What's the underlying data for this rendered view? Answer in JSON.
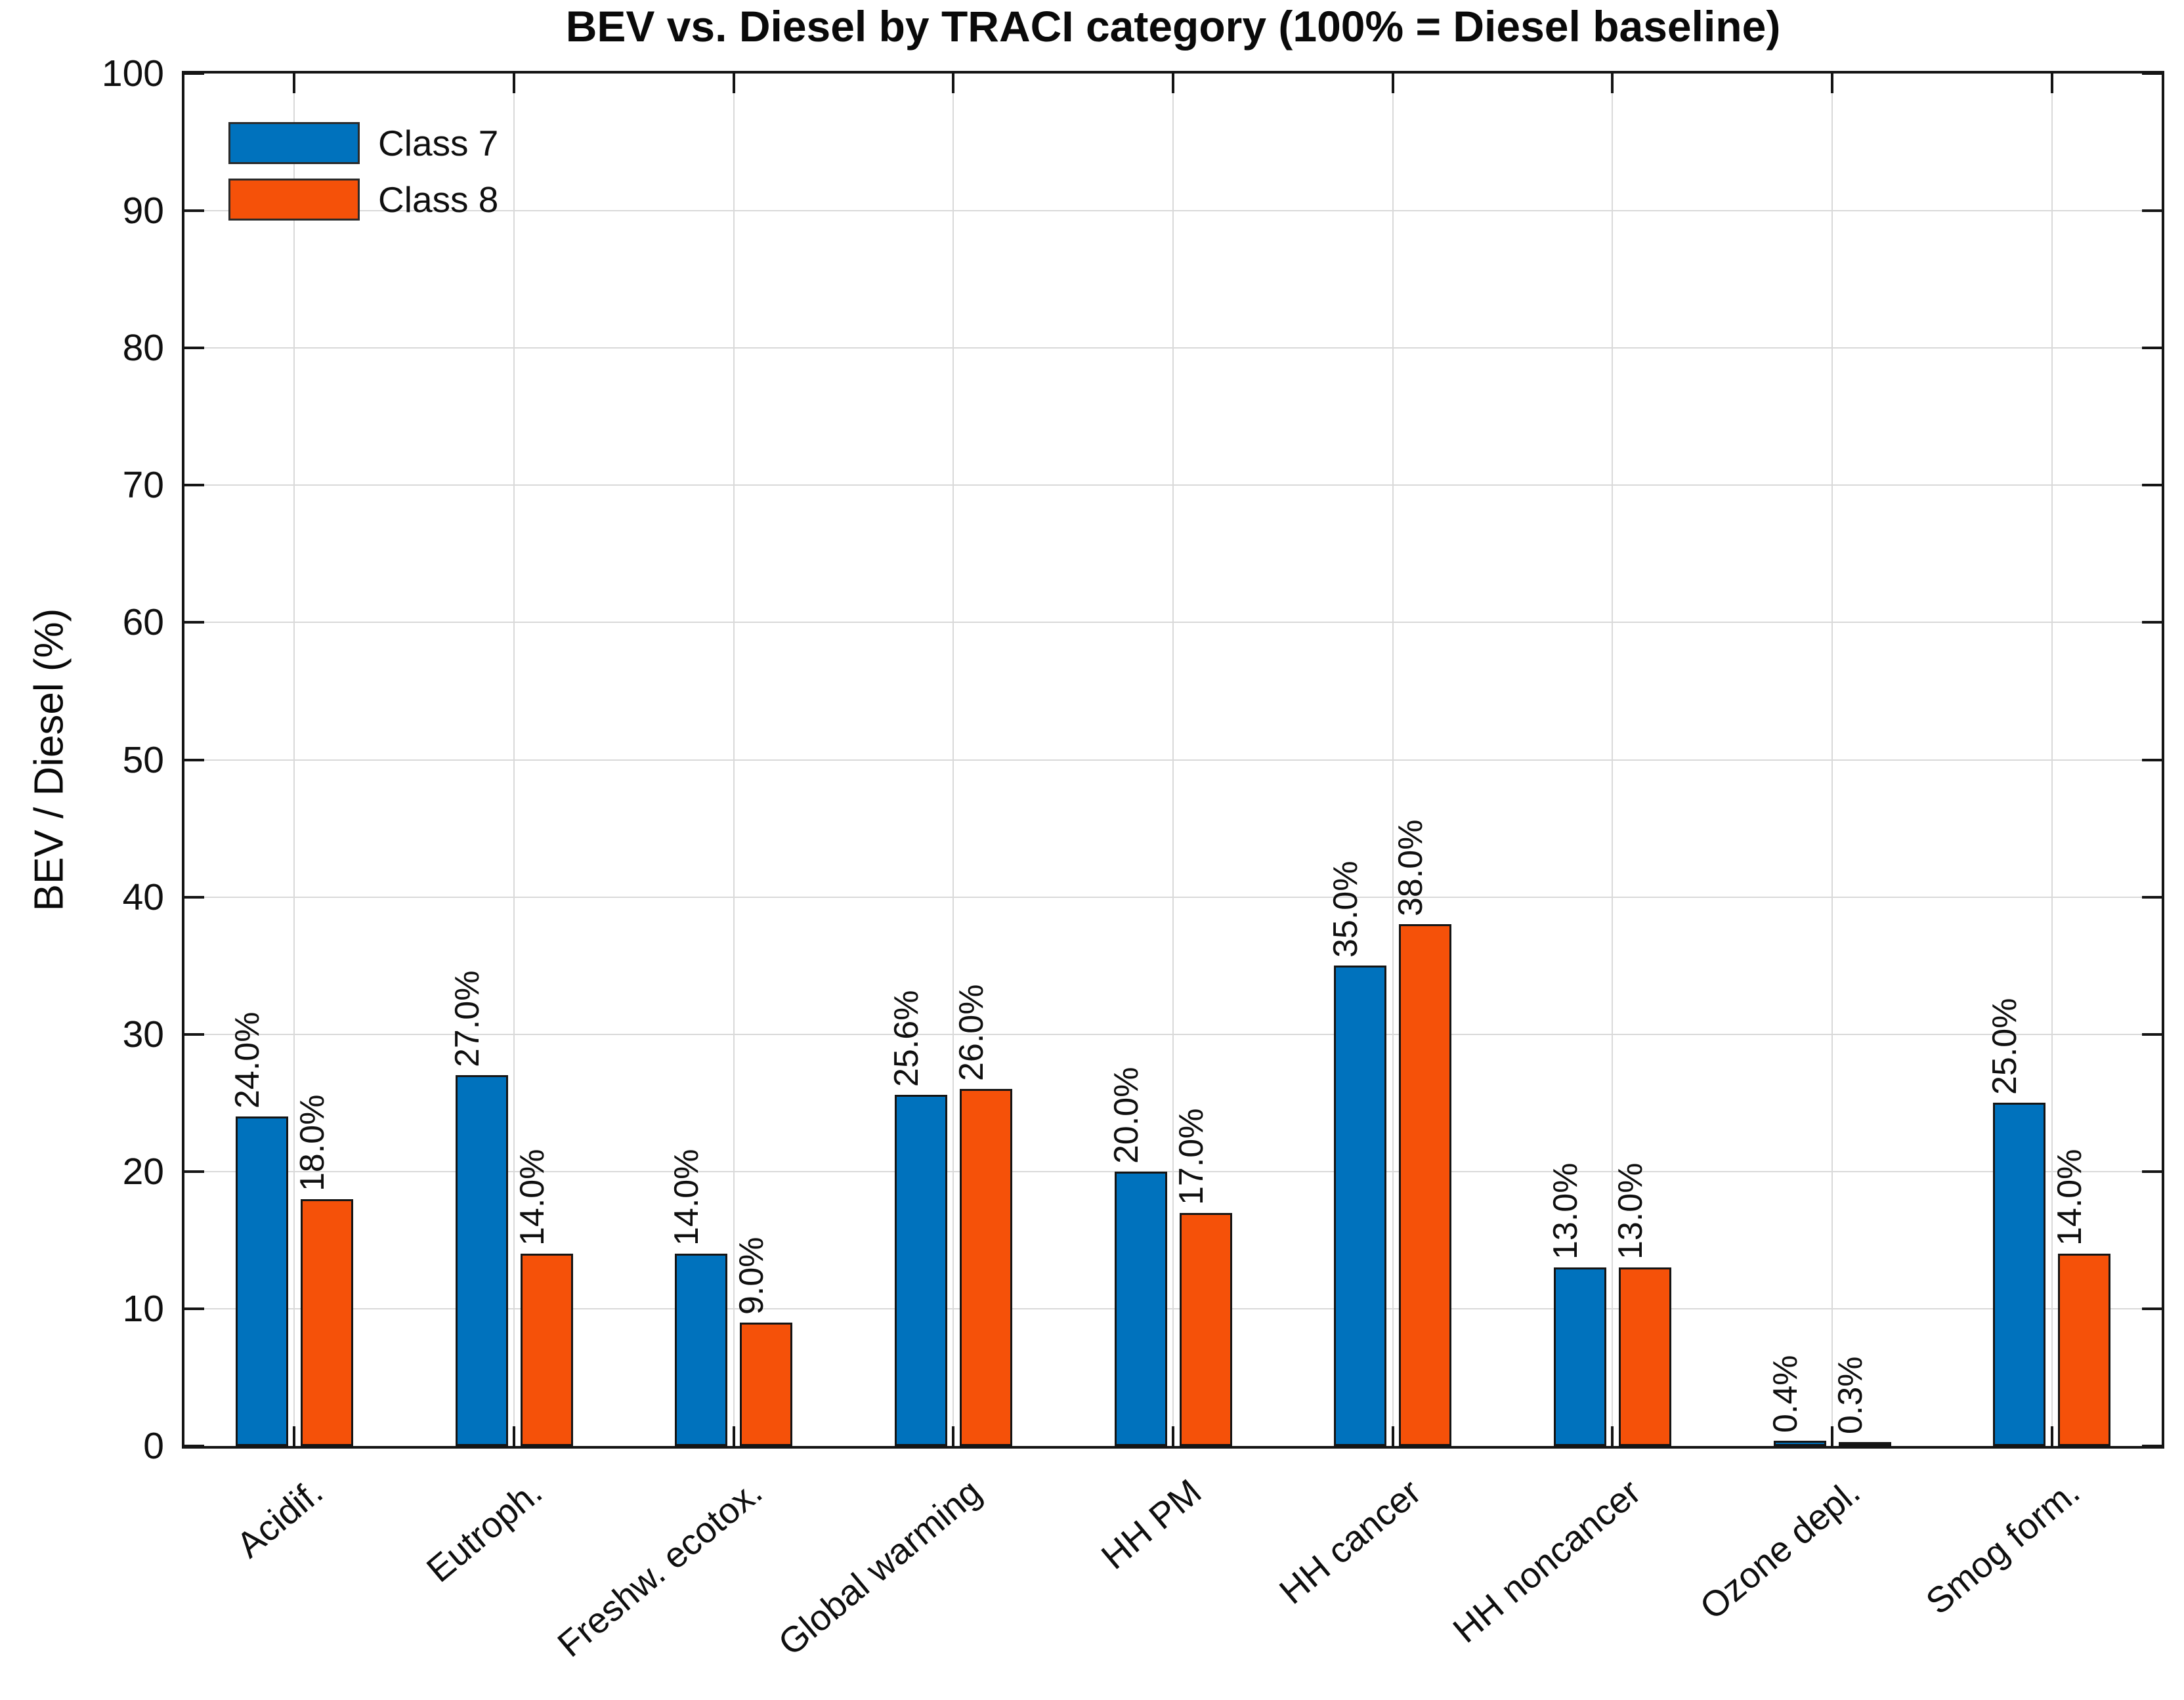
{
  "chart_data": {
    "type": "bar",
    "title": "BEV vs. Diesel by TRACI category (100% = Diesel baseline)",
    "ylabel": "BEV / Diesel (%)",
    "xlabel": "",
    "ylim": [
      0,
      100
    ],
    "yticks": [
      0,
      10,
      20,
      30,
      40,
      50,
      60,
      70,
      80,
      90,
      100
    ],
    "grid": true,
    "legend_position": "top-left-inside",
    "categories": [
      "Acidif.",
      "Eutroph.",
      "Freshw. ecotox.",
      "Global warming",
      "HH PM",
      "HH cancer",
      "HH noncancer",
      "Ozone depl.",
      "Smog form."
    ],
    "series": [
      {
        "name": "Class 7",
        "color": "#0072BD",
        "values": [
          24.0,
          27.0,
          14.0,
          25.6,
          20.0,
          35.0,
          13.0,
          0.4,
          25.0
        ],
        "labels": [
          "24.0%",
          "27.0%",
          "14.0%",
          "25.6%",
          "20.0%",
          "35.0%",
          "13.0%",
          "0.4%",
          "25.0%"
        ]
      },
      {
        "name": "Class 8",
        "color": "#F55109",
        "values": [
          18.0,
          14.0,
          9.0,
          26.0,
          17.0,
          38.0,
          13.0,
          0.3,
          14.0
        ],
        "labels": [
          "18.0%",
          "14.0%",
          "9.0%",
          "26.0%",
          "17.0%",
          "38.0%",
          "13.0%",
          "0.3%",
          "14.0%"
        ]
      }
    ]
  }
}
